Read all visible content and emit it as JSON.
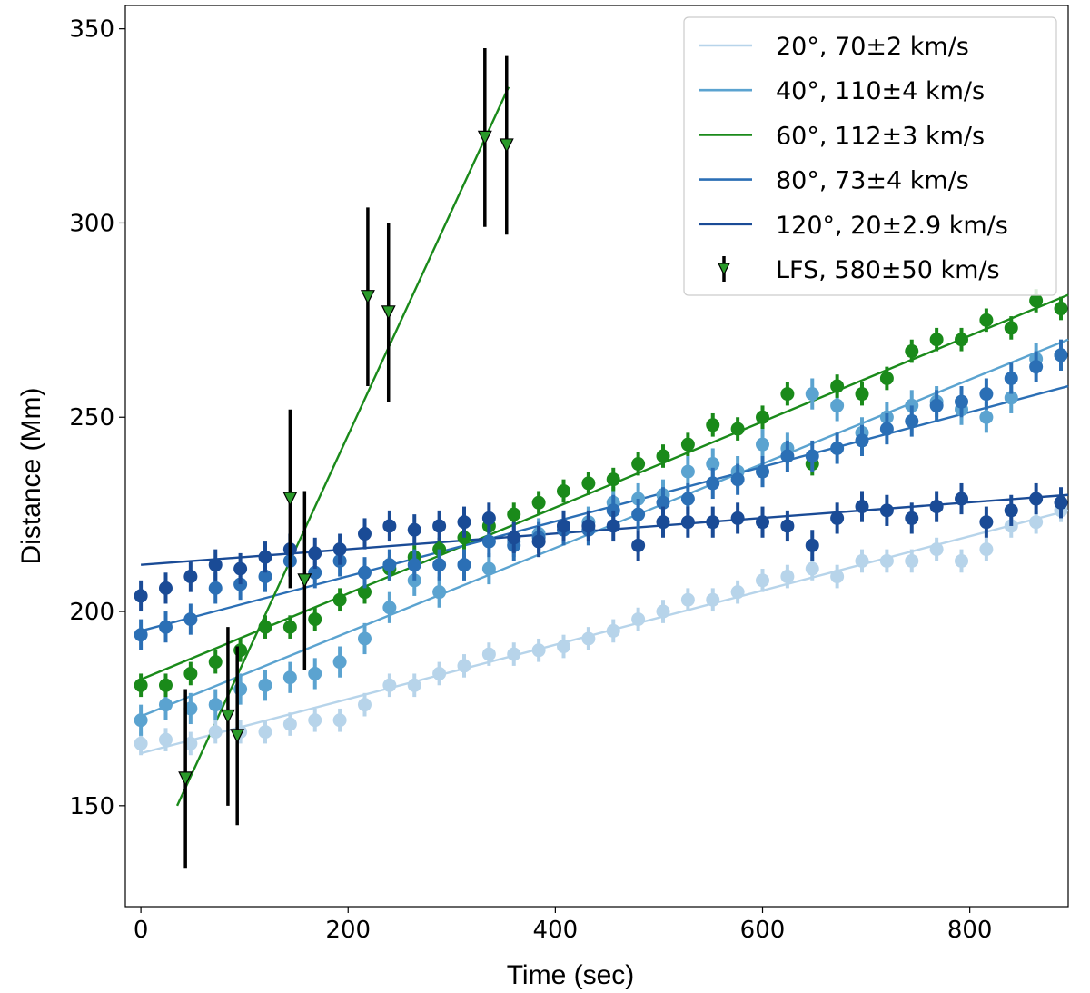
{
  "chart_data": {
    "type": "scatter",
    "title": "",
    "xlabel": "Time (sec)",
    "ylabel": "Distance (Mm)",
    "xlim": [
      -15,
      895
    ],
    "ylim": [
      124,
      356
    ],
    "xticks": [
      0,
      200,
      400,
      600,
      800
    ],
    "yticks": [
      150,
      200,
      250,
      300,
      350
    ],
    "grid": false,
    "legend_position": "top-right",
    "series": [
      {
        "name": "20°, 70±2 km/s",
        "color": "#b7d4ea",
        "marker": "circle",
        "yerr": 3,
        "fit": {
          "x": [
            0,
            895
          ],
          "y": [
            163.5,
            226
          ]
        },
        "x": [
          0,
          24,
          48,
          72,
          96,
          120,
          144,
          168,
          192,
          216,
          240,
          264,
          288,
          312,
          336,
          360,
          384,
          408,
          432,
          456,
          480,
          504,
          528,
          552,
          576,
          600,
          624,
          648,
          672,
          696,
          720,
          744,
          768,
          792,
          816,
          840,
          864,
          888
        ],
        "y": [
          166,
          167,
          166,
          169,
          169,
          169,
          171,
          172,
          172,
          176,
          181,
          181,
          184,
          186,
          189,
          189,
          190,
          191,
          193,
          195,
          198,
          200,
          203,
          203,
          205,
          208,
          209,
          211,
          209,
          213,
          213,
          213,
          216,
          213,
          216,
          222,
          223,
          226
        ]
      },
      {
        "name": "40°, 110±4 km/s",
        "color": "#5ba3d0",
        "marker": "circle",
        "yerr": 4,
        "fit": {
          "x": [
            0,
            895
          ],
          "y": [
            173,
            270
          ]
        },
        "x": [
          0,
          24,
          48,
          72,
          96,
          120,
          144,
          168,
          192,
          216,
          240,
          264,
          288,
          312,
          336,
          360,
          384,
          408,
          432,
          456,
          480,
          504,
          528,
          552,
          576,
          600,
          624,
          648,
          672,
          696,
          720,
          744,
          768,
          792,
          816,
          840,
          864,
          888
        ],
        "y": [
          172,
          176,
          175,
          176,
          180,
          181,
          183,
          184,
          187,
          193,
          201,
          208,
          205,
          212,
          211,
          218,
          220,
          222,
          223,
          228,
          229,
          230,
          236,
          238,
          236,
          243,
          242,
          256,
          253,
          246,
          250,
          253,
          254,
          252,
          250,
          255,
          265,
          266
        ]
      },
      {
        "name": "60°, 112±3 km/s",
        "color": "#1a8a1a",
        "marker": "circle",
        "yerr": 3,
        "fit": {
          "x": [
            0,
            895
          ],
          "y": [
            182.5,
            281.5
          ]
        },
        "x": [
          0,
          24,
          48,
          72,
          96,
          120,
          144,
          168,
          192,
          216,
          240,
          264,
          288,
          312,
          336,
          360,
          384,
          408,
          432,
          456,
          480,
          504,
          528,
          552,
          576,
          600,
          624,
          648,
          672,
          696,
          720,
          744,
          768,
          792,
          816,
          840,
          864,
          888
        ],
        "y": [
          181,
          181,
          184,
          187,
          190,
          196,
          196,
          198,
          203,
          205,
          211,
          214,
          216,
          219,
          222,
          225,
          228,
          231,
          233,
          234,
          238,
          240,
          243,
          248,
          247,
          250,
          256,
          238,
          258,
          256,
          260,
          267,
          270,
          270,
          275,
          273,
          280,
          278
        ]
      },
      {
        "name": "80°, 73±4 km/s",
        "color": "#2b6fb5",
        "marker": "circle",
        "yerr": 4,
        "fit": {
          "x": [
            0,
            895
          ],
          "y": [
            195,
            258
          ]
        },
        "x": [
          0,
          24,
          48,
          72,
          96,
          120,
          144,
          168,
          192,
          216,
          240,
          264,
          288,
          312,
          336,
          360,
          384,
          408,
          432,
          456,
          480,
          504,
          528,
          552,
          576,
          600,
          624,
          648,
          672,
          696,
          720,
          744,
          768,
          792,
          816,
          840,
          864,
          888
        ],
        "y": [
          194,
          196,
          198,
          206,
          207,
          209,
          213,
          210,
          213,
          210,
          212,
          212,
          212,
          212,
          218,
          217,
          219,
          221,
          221,
          226,
          225,
          228,
          229,
          233,
          234,
          236,
          240,
          240,
          242,
          244,
          247,
          249,
          253,
          254,
          256,
          260,
          263,
          266
        ]
      },
      {
        "name": "120°, 20±2.9 km/s",
        "color": "#1a4b96",
        "marker": "circle",
        "yerr": 4,
        "fit": {
          "x": [
            0,
            895
          ],
          "y": [
            212,
            230
          ]
        },
        "x": [
          0,
          24,
          48,
          72,
          96,
          120,
          144,
          168,
          192,
          216,
          240,
          264,
          288,
          312,
          336,
          360,
          384,
          408,
          432,
          456,
          480,
          504,
          528,
          552,
          576,
          600,
          624,
          648,
          672,
          696,
          720,
          744,
          768,
          792,
          816,
          840,
          864,
          888
        ],
        "y": [
          204,
          206,
          209,
          212,
          211,
          214,
          216,
          215,
          216,
          220,
          222,
          221,
          222,
          223,
          224,
          219,
          218,
          222,
          222,
          222,
          217,
          223,
          223,
          223,
          224,
          223,
          222,
          217,
          224,
          227,
          226,
          224,
          227,
          229,
          223,
          226,
          229,
          228
        ]
      },
      {
        "name": "LFS, 580±50 km/s",
        "color": "#2a9a2a",
        "line_color": "#1a8a1a",
        "marker": "triangle_down",
        "err_color": "#000000",
        "fit": {
          "x": [
            35,
            355
          ],
          "y": [
            150,
            335
          ]
        },
        "x": [
          43,
          84,
          93,
          144,
          158,
          219,
          239,
          332,
          353
        ],
        "y": [
          157,
          173,
          168,
          229,
          208,
          281,
          277,
          322,
          320
        ],
        "yerr": [
          23,
          23,
          23,
          23,
          23,
          23,
          23,
          23,
          23
        ]
      }
    ]
  }
}
